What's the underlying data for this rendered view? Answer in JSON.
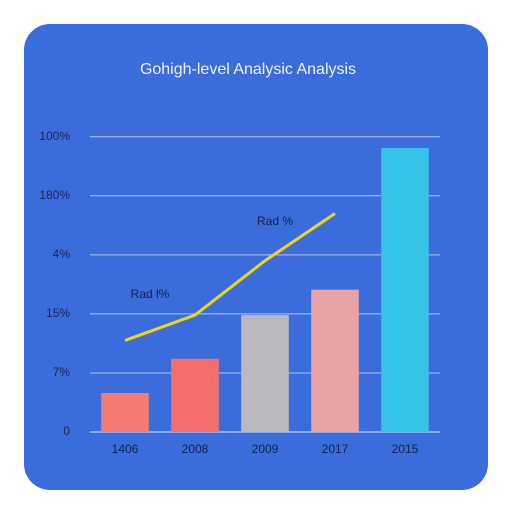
{
  "chart_data": {
    "type": "bar-line",
    "title": "Gohigh-level Analysic Analysis",
    "categories": [
      "1406",
      "2008",
      "2009",
      "2017",
      "2015"
    ],
    "series": [
      {
        "type": "bar",
        "colors": [
          "#f57a70",
          "#f46e6e",
          "#b8b9bf",
          "#e9a3a6",
          "#33c4e8"
        ],
        "values": [
          0.66,
          1.24,
          1.98,
          2.41,
          4.81
        ]
      },
      {
        "type": "line",
        "color": "#f2d41c",
        "values": [
          1.55,
          1.98,
          2.9,
          3.7,
          null
        ]
      }
    ],
    "annotations": [
      "Rad %",
      "Rad l%"
    ],
    "ylim": [
      0,
      5.3
    ],
    "yticks": [
      {
        "value": 0,
        "label": "0"
      },
      {
        "value": 1,
        "label": "7%"
      },
      {
        "value": 2,
        "label": "15%"
      },
      {
        "value": 3,
        "label": "4%"
      },
      {
        "value": 4,
        "label": "180%"
      },
      {
        "value": 5,
        "label": "100%"
      }
    ],
    "grid": true
  }
}
